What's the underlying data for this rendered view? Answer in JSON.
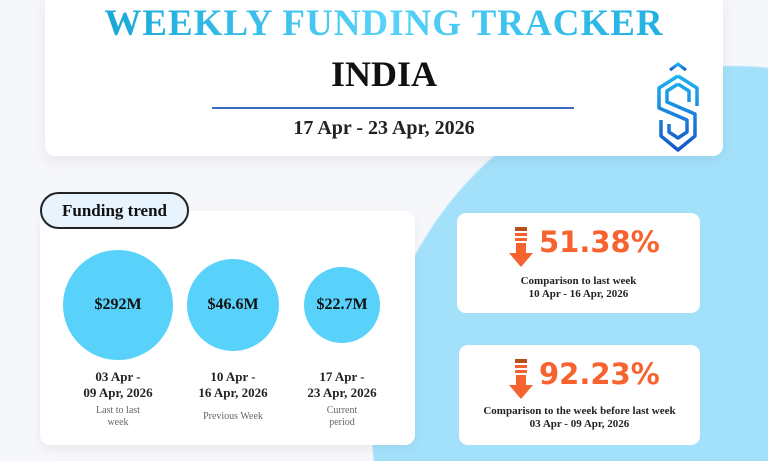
{
  "header": {
    "title": "WEEKLY FUNDING TRACKER",
    "country": "INDIA",
    "date_range": "17 Apr - 23 Apr, 2026"
  },
  "logo": {
    "letter": "S",
    "colors": [
      "#1bb3ef",
      "#1a56c9"
    ]
  },
  "colors": {
    "bubble": "#59d2fb",
    "accent": "#f7632e",
    "background_circle": "#a3e1fb"
  },
  "chart_data": {
    "type": "bubble",
    "title": "Funding trend",
    "unit": "USD millions",
    "categories": [
      "03 Apr - 09 Apr, 2026",
      "10 Apr - 16 Apr, 2026",
      "17 Apr - 23 Apr, 2026"
    ],
    "values": [
      292,
      46.6,
      22.7
    ],
    "points": [
      {
        "value_label": "$292M",
        "date_line1": "03 Apr -",
        "date_line2": "09 Apr, 2026",
        "caption_line1": "Last to last",
        "caption_line2": "week"
      },
      {
        "value_label": "$46.6M",
        "date_line1": "10 Apr -",
        "date_line2": "16 Apr, 2026",
        "caption_line1": "Previous Week",
        "caption_line2": ""
      },
      {
        "value_label": "$22.7M",
        "date_line1": "17 Apr -",
        "date_line2": "23 Apr, 2026",
        "caption_line1": "Current",
        "caption_line2": "period"
      }
    ]
  },
  "comparisons": [
    {
      "icon": "arrow-down-icon",
      "change": "51.38%",
      "label": "Comparison to last week",
      "period": "10 Apr - 16 Apr, 2026"
    },
    {
      "icon": "arrow-down-icon",
      "change": "92.23%",
      "label": "Comparison to the week before last week",
      "period": "03 Apr - 09 Apr, 2026"
    }
  ]
}
